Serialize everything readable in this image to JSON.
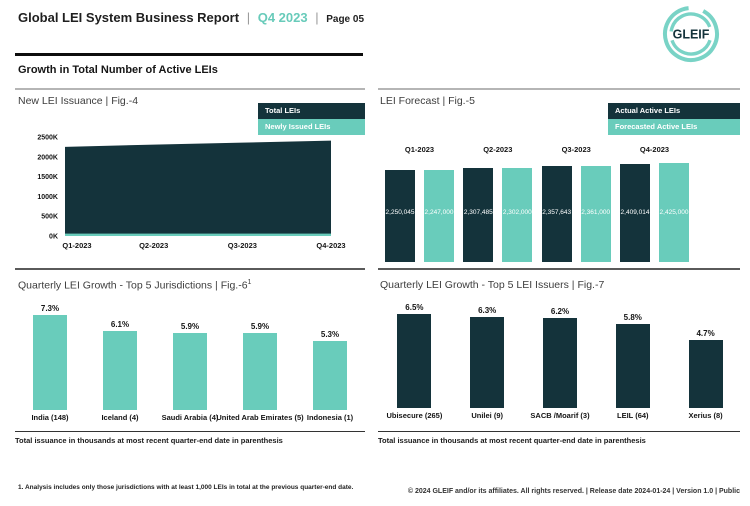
{
  "header": {
    "title": "Global LEI System Business Report",
    "divider": "|",
    "period": "Q4 2023",
    "page_label": "Page 05",
    "logo_text": "GLEIF"
  },
  "section": {
    "title": "Growth in Total Number of Active LEIs"
  },
  "colors": {
    "dark": "#14333B",
    "teal": "#69CCBB",
    "logo_teal": "#79D3C6",
    "accent_text": "#68CBBA"
  },
  "fig4": {
    "title": "New LEI Issuance | Fig.-4",
    "legend": [
      {
        "label": "Total LEIs",
        "color_key": "dark"
      },
      {
        "label": "Newly Issued LEIs",
        "color_key": "teal"
      }
    ],
    "y_ticks": [
      "2500K",
      "2000K",
      "1500K",
      "1000K",
      "500K",
      "0K"
    ],
    "x_labels": [
      "Q1-2023",
      "Q2-2023",
      "Q3-2023",
      "Q4-2023"
    ],
    "totals_k": [
      2250,
      2307,
      2358,
      2409
    ],
    "newly_issued_k": [
      60,
      60,
      60,
      60
    ],
    "y_max_k": 2500
  },
  "fig5": {
    "title": "LEI Forecast | Fig.-5",
    "legend": [
      {
        "label": "Actual Active LEIs",
        "color_key": "dark"
      },
      {
        "label": "Forecasted Active LEIs",
        "color_key": "teal"
      }
    ],
    "groups": [
      "Q1-2023",
      "Q2-2023",
      "Q3-2023",
      "Q4-2023"
    ],
    "actual": {
      "values": [
        2250045,
        2307485,
        2357643,
        2409014
      ],
      "labels": [
        "2,250,045",
        "2,307,485",
        "2,357,643",
        "2,409,014"
      ]
    },
    "forecast": {
      "values": [
        2247000,
        2302000,
        2361000,
        2425000
      ],
      "labels": [
        "2,247,000",
        "2,302,000",
        "2,361,000",
        "2,425,000"
      ]
    },
    "scale_max": 2425000
  },
  "fig6": {
    "title": "Quarterly LEI Growth - Top 5 Jurisdictions | Fig.-6",
    "title_superscript": "1",
    "bar_color_key": "teal",
    "items": [
      {
        "label": "India (148)",
        "value": 7.3,
        "value_label": "7.3%"
      },
      {
        "label": "Iceland (4)",
        "value": 6.1,
        "value_label": "6.1%"
      },
      {
        "label": "Saudi Arabia (4)",
        "value": 5.9,
        "value_label": "5.9%"
      },
      {
        "label": "United Arab Emirates (5)",
        "value": 5.9,
        "value_label": "5.9%"
      },
      {
        "label": "Indonesia (1)",
        "value": 5.3,
        "value_label": "5.3%"
      }
    ],
    "note": "Total issuance in thousands at most recent quarter-end date in parenthesis"
  },
  "fig7": {
    "title": "Quarterly LEI Growth - Top 5 LEI Issuers | Fig.-7",
    "bar_color_key": "dark",
    "items": [
      {
        "label": "Ubisecure (265)",
        "value": 6.5,
        "value_label": "6.5%"
      },
      {
        "label": "Unilei (9)",
        "value": 6.3,
        "value_label": "6.3%"
      },
      {
        "label": "SACB /Moarif (3)",
        "value": 6.2,
        "value_label": "6.2%"
      },
      {
        "label": "LEIL (64)",
        "value": 5.8,
        "value_label": "5.8%"
      },
      {
        "label": "Xerius (8)",
        "value": 4.7,
        "value_label": "4.7%"
      }
    ],
    "note": "Total issuance in thousands at most recent quarter-end date in parenthesis"
  },
  "footnote": "1. Analysis includes only those jurisdictions with at least 1,000 LEIs in total at the previous quarter-end date.",
  "footer": "© 2024 GLEIF and/or its affiliates. All rights reserved. | Release date 2024-01-24 | Version 1.0 | Public",
  "chart_data": [
    {
      "id": "fig4",
      "type": "area",
      "title": "New LEI Issuance | Fig.-4",
      "x": [
        "Q1-2023",
        "Q2-2023",
        "Q3-2023",
        "Q4-2023"
      ],
      "series": [
        {
          "name": "Total LEIs",
          "values_thousands": [
            2250,
            2307,
            2358,
            2409
          ]
        },
        {
          "name": "Newly Issued LEIs",
          "values_thousands": [
            60,
            60,
            60,
            60
          ]
        }
      ],
      "ylabel_ticks": [
        "0K",
        "500K",
        "1000K",
        "1500K",
        "2000K",
        "2500K"
      ],
      "ylim_thousands": [
        0,
        2500
      ],
      "grid": false,
      "legend_position": "top-right"
    },
    {
      "id": "fig5",
      "type": "bar",
      "title": "LEI Forecast | Fig.-5",
      "categories": [
        "Q1-2023",
        "Q2-2023",
        "Q3-2023",
        "Q4-2023"
      ],
      "series": [
        {
          "name": "Actual Active LEIs",
          "values": [
            2250045,
            2307485,
            2357643,
            2409014
          ]
        },
        {
          "name": "Forecasted Active LEIs",
          "values": [
            2247000,
            2302000,
            2361000,
            2425000
          ]
        }
      ],
      "data_labels": true,
      "grid": false,
      "legend_position": "top-right"
    },
    {
      "id": "fig6",
      "type": "bar",
      "title": "Quarterly LEI Growth - Top 5 Jurisdictions | Fig.-6(1)",
      "categories": [
        "India (148)",
        "Iceland (4)",
        "Saudi Arabia (4)",
        "United Arab Emirates (5)",
        "Indonesia (1)"
      ],
      "values": [
        7.3,
        6.1,
        5.9,
        5.9,
        5.3
      ],
      "unit": "%",
      "data_labels": true,
      "grid": false
    },
    {
      "id": "fig7",
      "type": "bar",
      "title": "Quarterly LEI Growth - Top 5 LEI Issuers | Fig.-7",
      "categories": [
        "Ubisecure (265)",
        "Unilei (9)",
        "SACB /Moarif (3)",
        "LEIL (64)",
        "Xerius (8)"
      ],
      "values": [
        6.5,
        6.3,
        6.2,
        5.8,
        4.7
      ],
      "unit": "%",
      "data_labels": true,
      "grid": false
    }
  ]
}
